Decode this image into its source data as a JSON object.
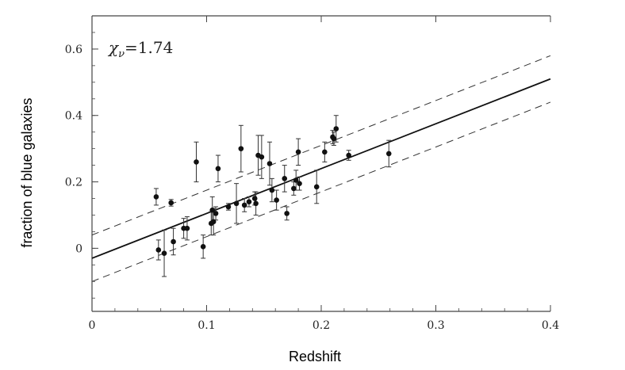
{
  "chart_data": {
    "type": "scatter",
    "title": "",
    "xlabel": "Redshift",
    "ylabel": "fraction of blue galaxies",
    "xlim": [
      0,
      0.4
    ],
    "ylim": [
      -0.19,
      0.7
    ],
    "x_ticks": [
      0,
      0.1,
      0.2,
      0.3,
      0.4
    ],
    "x_tick_labels": [
      "0",
      "0.1",
      "0.2",
      "0.3",
      "0.4"
    ],
    "y_ticks": [
      0,
      0.2,
      0.4,
      0.6
    ],
    "y_tick_labels": [
      "0",
      "0.2",
      "0.4",
      "0.6"
    ],
    "annotation": "χ_ν=1.74",
    "grid": false,
    "fit_line": {
      "intercept": -0.03,
      "slope": 1.35
    },
    "fit_band_offset": 0.07,
    "points": [
      {
        "x": 0.056,
        "y": 0.155,
        "err": 0.025
      },
      {
        "x": 0.058,
        "y": -0.005,
        "err": 0.03
      },
      {
        "x": 0.063,
        "y": -0.015,
        "err": 0.07
      },
      {
        "x": 0.069,
        "y": 0.137,
        "err": 0.01
      },
      {
        "x": 0.071,
        "y": 0.02,
        "err": 0.04
      },
      {
        "x": 0.08,
        "y": 0.06,
        "err": 0.03
      },
      {
        "x": 0.083,
        "y": 0.06,
        "err": 0.035
      },
      {
        "x": 0.091,
        "y": 0.26,
        "err": 0.06
      },
      {
        "x": 0.097,
        "y": 0.005,
        "err": 0.035
      },
      {
        "x": 0.104,
        "y": 0.075,
        "err": 0.035
      },
      {
        "x": 0.105,
        "y": 0.115,
        "err": 0.04
      },
      {
        "x": 0.106,
        "y": 0.08,
        "err": 0.04
      },
      {
        "x": 0.108,
        "y": 0.105,
        "err": 0.02
      },
      {
        "x": 0.11,
        "y": 0.24,
        "err": 0.04
      },
      {
        "x": 0.119,
        "y": 0.125,
        "err": 0.01
      },
      {
        "x": 0.126,
        "y": 0.135,
        "err": 0.06
      },
      {
        "x": 0.13,
        "y": 0.3,
        "err": 0.07
      },
      {
        "x": 0.133,
        "y": 0.13,
        "err": 0.02
      },
      {
        "x": 0.137,
        "y": 0.14,
        "err": 0.015
      },
      {
        "x": 0.142,
        "y": 0.15,
        "err": 0.02
      },
      {
        "x": 0.143,
        "y": 0.135,
        "err": 0.035
      },
      {
        "x": 0.145,
        "y": 0.28,
        "err": 0.06
      },
      {
        "x": 0.148,
        "y": 0.275,
        "err": 0.065
      },
      {
        "x": 0.155,
        "y": 0.255,
        "err": 0.065
      },
      {
        "x": 0.157,
        "y": 0.175,
        "err": 0.035
      },
      {
        "x": 0.161,
        "y": 0.145,
        "err": 0.03
      },
      {
        "x": 0.168,
        "y": 0.21,
        "err": 0.04
      },
      {
        "x": 0.17,
        "y": 0.105,
        "err": 0.02
      },
      {
        "x": 0.176,
        "y": 0.18,
        "err": 0.02
      },
      {
        "x": 0.178,
        "y": 0.205,
        "err": 0.03
      },
      {
        "x": 0.18,
        "y": 0.29,
        "err": 0.04
      },
      {
        "x": 0.181,
        "y": 0.195,
        "err": 0.02
      },
      {
        "x": 0.196,
        "y": 0.185,
        "err": 0.05
      },
      {
        "x": 0.203,
        "y": 0.29,
        "err": 0.03
      },
      {
        "x": 0.21,
        "y": 0.335,
        "err": 0.02
      },
      {
        "x": 0.211,
        "y": 0.33,
        "err": 0.02
      },
      {
        "x": 0.213,
        "y": 0.36,
        "err": 0.04
      },
      {
        "x": 0.224,
        "y": 0.28,
        "err": 0.015
      },
      {
        "x": 0.259,
        "y": 0.285,
        "err": 0.04
      }
    ]
  }
}
